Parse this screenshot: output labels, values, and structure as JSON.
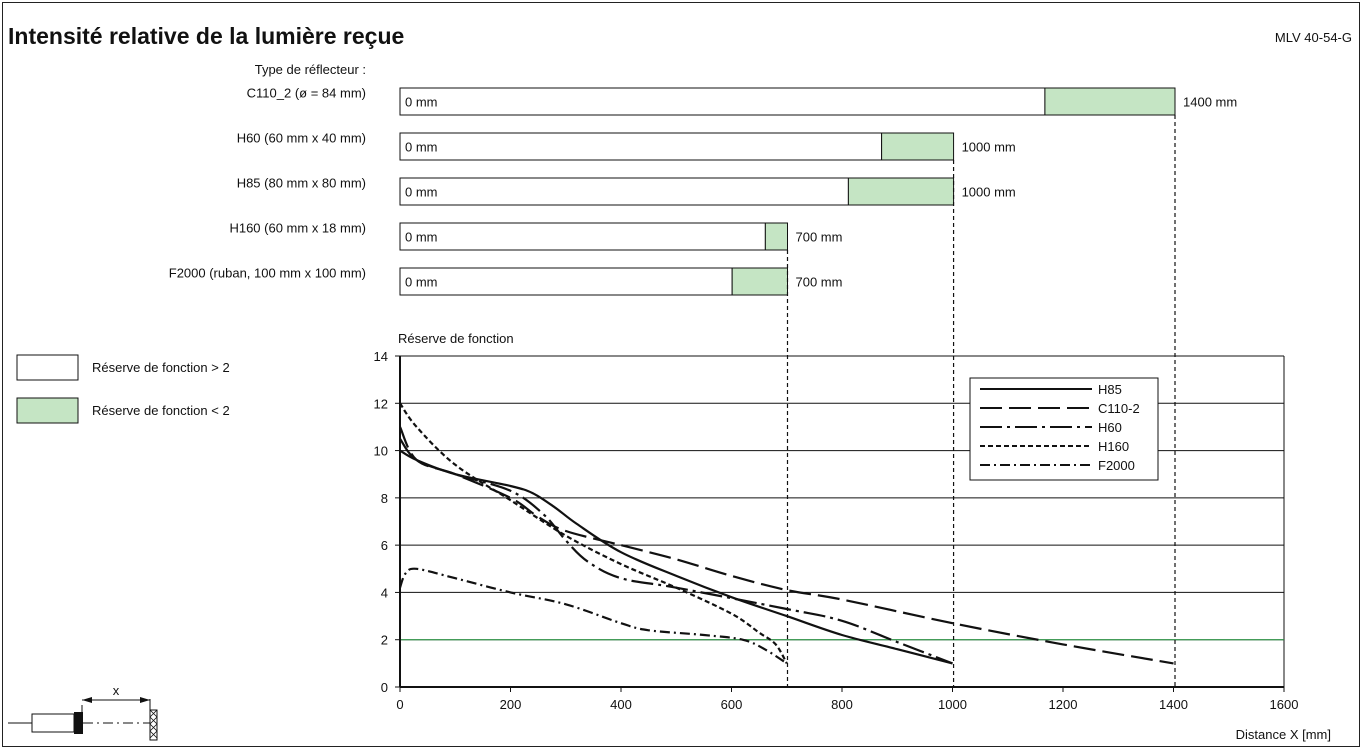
{
  "title": "Intensité relative de la lumière reçue",
  "model": "MLV 40-54-G",
  "reflector_header": "Type de réflecteur :",
  "colors": {
    "green_fill": "#c5e5c4",
    "green_line": "#2fa34a",
    "line": "#111111"
  },
  "reflectors": [
    {
      "label": "C110_2 (ø = 84 mm)",
      "start_label": "0 mm",
      "end_label": "1400 mm",
      "max": 1400,
      "green_from": 1165
    },
    {
      "label": "H60 (60 mm x 40 mm)",
      "start_label": "0 mm",
      "end_label": "1000 mm",
      "max": 1000,
      "green_from": 870
    },
    {
      "label": "H85 (80 mm x 80 mm)",
      "start_label": "0 mm",
      "end_label": "1000 mm",
      "max": 1000,
      "green_from": 810
    },
    {
      "label": "H160 (60 mm x 18 mm)",
      "start_label": "0 mm",
      "end_label": "700 mm",
      "max": 700,
      "green_from": 660
    },
    {
      "label": "F2000 (ruban, 100 mm x 100 mm)",
      "start_label": "0 mm",
      "end_label": "700 mm",
      "max": 700,
      "green_from": 600
    }
  ],
  "legend_boxes": [
    {
      "label": "Réserve de fonction > 2",
      "fill": "#ffffff"
    },
    {
      "label": "Réserve de fonction < 2",
      "fill": "#c5e5c4"
    }
  ],
  "diagram": {
    "x_symbol": "x"
  },
  "chart_data": {
    "type": "line",
    "ylabel": "Réserve de fonction",
    "xlabel": "Distance X [mm]",
    "xlim": [
      0,
      1600
    ],
    "ylim": [
      0,
      14
    ],
    "xticks": [
      0,
      200,
      400,
      600,
      800,
      1000,
      1200,
      1400,
      1600
    ],
    "yticks": [
      0,
      2,
      4,
      6,
      8,
      10,
      12,
      14
    ],
    "threshold": 2,
    "grid": true,
    "legend_position": "top-right",
    "series": [
      {
        "name": "H85",
        "dash": "",
        "points": [
          [
            0,
            10
          ],
          [
            30,
            9.6
          ],
          [
            100,
            9
          ],
          [
            200,
            8.5
          ],
          [
            240,
            8.2
          ],
          [
            280,
            7.6
          ],
          [
            320,
            6.9
          ],
          [
            400,
            5.7
          ],
          [
            500,
            4.7
          ],
          [
            600,
            3.8
          ],
          [
            700,
            3.0
          ],
          [
            800,
            2.2
          ],
          [
            900,
            1.6
          ],
          [
            1000,
            1.0
          ]
        ]
      },
      {
        "name": "C110-2",
        "dash": "22 7",
        "points": [
          [
            0,
            11
          ],
          [
            30,
            9.6
          ],
          [
            100,
            9
          ],
          [
            200,
            8.0
          ],
          [
            250,
            7.2
          ],
          [
            300,
            6.6
          ],
          [
            400,
            6.0
          ],
          [
            500,
            5.4
          ],
          [
            600,
            4.7
          ],
          [
            700,
            4.1
          ],
          [
            800,
            3.7
          ],
          [
            1000,
            2.7
          ],
          [
            1200,
            1.8
          ],
          [
            1400,
            1.0
          ]
        ]
      },
      {
        "name": "H60",
        "dash": "22 5 3 5",
        "points": [
          [
            0,
            10.5
          ],
          [
            30,
            9.6
          ],
          [
            100,
            9
          ],
          [
            200,
            8.3
          ],
          [
            260,
            7.3
          ],
          [
            300,
            6.2
          ],
          [
            340,
            5.3
          ],
          [
            400,
            4.6
          ],
          [
            500,
            4.2
          ],
          [
            700,
            3.3
          ],
          [
            800,
            2.8
          ],
          [
            900,
            1.9
          ],
          [
            1000,
            1.0
          ]
        ]
      },
      {
        "name": "H160",
        "dash": "5 3",
        "points": [
          [
            0,
            12
          ],
          [
            30,
            11
          ],
          [
            100,
            9.4
          ],
          [
            200,
            7.9
          ],
          [
            300,
            6.4
          ],
          [
            400,
            5.2
          ],
          [
            500,
            4.2
          ],
          [
            600,
            3.1
          ],
          [
            650,
            2.3
          ],
          [
            680,
            1.8
          ],
          [
            700,
            1.0
          ]
        ]
      },
      {
        "name": "F2000",
        "dash": "10 4 2 4",
        "points": [
          [
            0,
            4.2
          ],
          [
            10,
            4.8
          ],
          [
            30,
            5.0
          ],
          [
            100,
            4.6
          ],
          [
            200,
            4.0
          ],
          [
            300,
            3.5
          ],
          [
            400,
            2.7
          ],
          [
            450,
            2.4
          ],
          [
            550,
            2.2
          ],
          [
            620,
            2.0
          ],
          [
            660,
            1.6
          ],
          [
            700,
            1.0
          ]
        ]
      }
    ]
  }
}
